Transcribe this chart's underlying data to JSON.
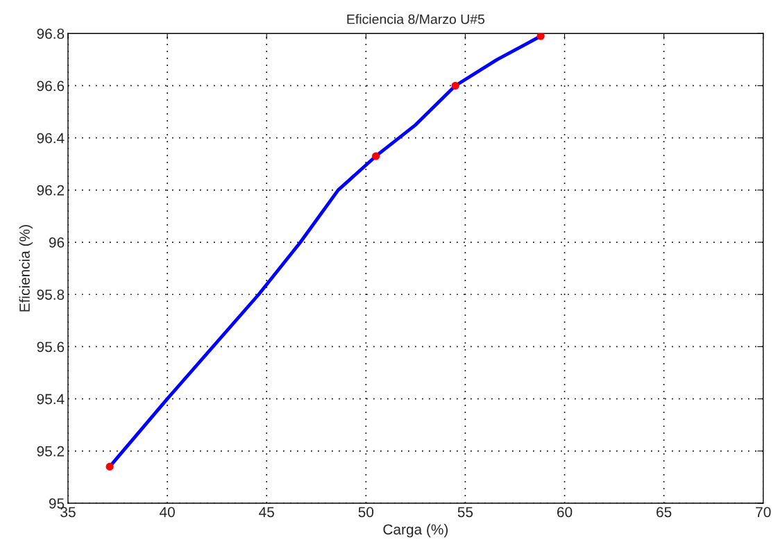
{
  "chart_data": {
    "type": "line",
    "title": "Eficiencia 8/Marzo U#5",
    "xlabel": "Carga (%)",
    "ylabel": "Eficiencia (%)",
    "series": [
      {
        "color": "#0000ff",
        "marker": "none",
        "line_style": "solid",
        "x": [
          37.1,
          40,
          44.6,
          46.7,
          48.6,
          50.5,
          52.5,
          54.5,
          56.6,
          58.8
        ],
        "values": [
          95.14,
          95.4,
          95.8,
          96.0,
          96.2,
          96.33,
          96.45,
          96.6,
          96.7,
          96.79
        ]
      },
      {
        "type": "scatter",
        "color": "#ff0000",
        "marker": "circle",
        "x": [
          37.1,
          50.5,
          54.5,
          58.8
        ],
        "values": [
          95.14,
          96.33,
          96.6,
          96.79
        ]
      }
    ],
    "xlim": [
      35,
      70
    ],
    "xticks": [
      35,
      40,
      45,
      50,
      55,
      60,
      65,
      70
    ],
    "ylim": [
      95,
      96.8
    ],
    "yticks": [
      95,
      95.2,
      95.4,
      95.6,
      95.8,
      96,
      96.2,
      96.4,
      96.6,
      96.8
    ],
    "grid": true,
    "legend": false
  }
}
